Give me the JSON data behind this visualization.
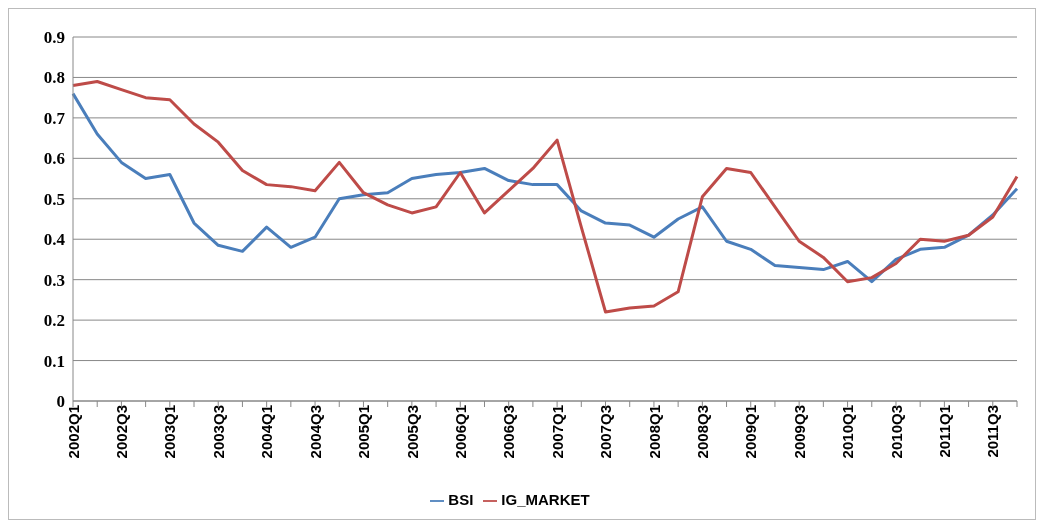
{
  "chart_data": {
    "type": "line",
    "categories": [
      "2002Q1",
      null,
      "2002Q3",
      null,
      "2003Q1",
      null,
      "2003Q3",
      null,
      "2004Q1",
      null,
      "2004Q3",
      null,
      "2005Q1",
      null,
      "2005Q3",
      null,
      "2006Q1",
      null,
      "2006Q3",
      null,
      "2007Q1",
      null,
      "2007Q3",
      null,
      "2008Q1",
      null,
      "2008Q3",
      null,
      "2009Q1",
      null,
      "2009Q3",
      null,
      "2010Q1",
      null,
      "2010Q3",
      null,
      "2011Q1",
      null,
      "2011Q3",
      null
    ],
    "series": [
      {
        "name": "BSI",
        "color": "#4a7ebb",
        "values": [
          0.76,
          0.66,
          0.59,
          0.55,
          0.56,
          0.44,
          0.385,
          0.37,
          0.43,
          0.38,
          0.405,
          0.5,
          0.51,
          0.515,
          0.55,
          0.56,
          0.565,
          0.575,
          0.545,
          0.535,
          0.535,
          0.47,
          0.44,
          0.435,
          0.405,
          0.45,
          0.48,
          0.395,
          0.375,
          0.335,
          0.33,
          0.325,
          0.345,
          0.295,
          0.35,
          0.375,
          0.38,
          0.41,
          0.46,
          0.525
        ]
      },
      {
        "name": "IG_MARKET",
        "color": "#be4b48",
        "values": [
          0.78,
          0.79,
          0.77,
          0.75,
          0.745,
          0.685,
          0.64,
          0.57,
          0.535,
          0.53,
          0.52,
          0.59,
          0.515,
          0.485,
          0.465,
          0.48,
          0.565,
          0.465,
          0.52,
          0.575,
          0.645,
          0.43,
          0.22,
          0.23,
          0.235,
          0.27,
          0.505,
          0.575,
          0.565,
          0.48,
          0.395,
          0.355,
          0.295,
          0.305,
          0.34,
          0.4,
          0.395,
          0.41,
          0.455,
          0.555
        ]
      }
    ],
    "ylim": [
      0,
      0.9
    ],
    "yticks": [
      0,
      0.1,
      0.2,
      0.3,
      0.4,
      0.5,
      0.6,
      0.7,
      0.8,
      0.9
    ],
    "grid": "y",
    "legend": "bottom",
    "marker": "none",
    "line_style": "solid"
  }
}
